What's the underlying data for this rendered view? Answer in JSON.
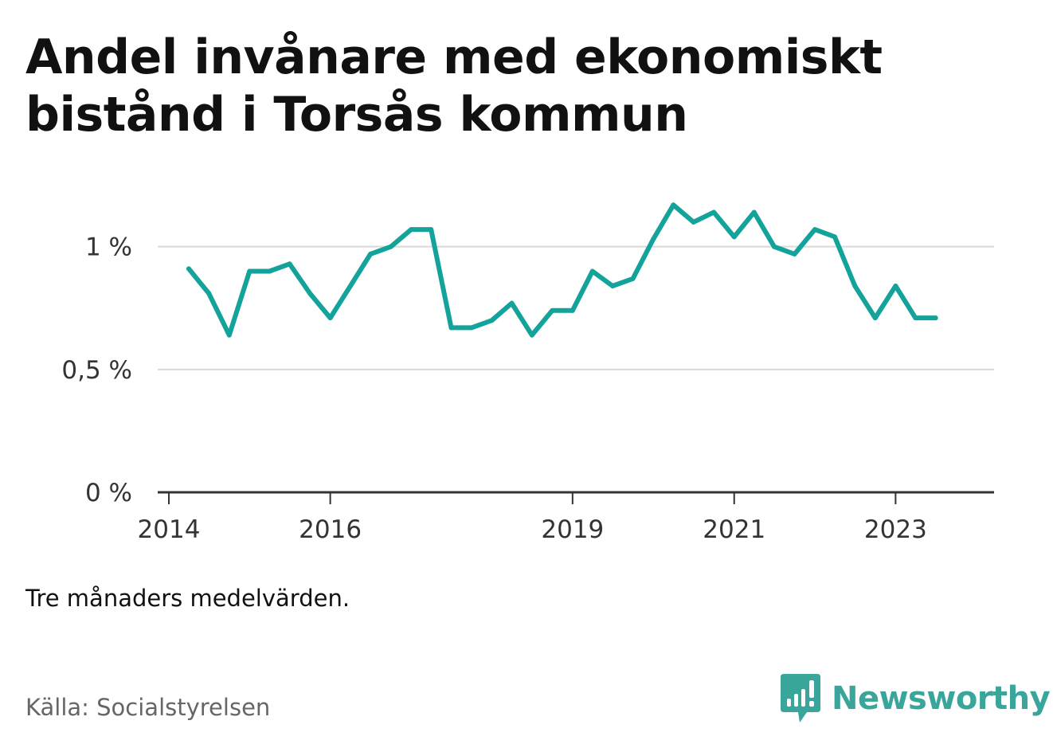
{
  "title": "Andel invånare med ekonomiskt bistånd i Torsås kommun",
  "subtitle": "Tre månaders medelvärden.",
  "source": "Källa: Socialstyrelsen",
  "brand": {
    "name": "Newsworthy",
    "logo_icon": "newsworthy-logo-icon",
    "color": "#3aa59a"
  },
  "chart_data": {
    "type": "line",
    "title": "Andel invånare med ekonomiskt bistånd i Torsås kommun",
    "xlabel": "",
    "ylabel": "",
    "x_axis": {
      "type": "date",
      "range": [
        "2014-01-01",
        "2024-01-31"
      ],
      "ticks": [
        {
          "label": "2014",
          "date": "2014-01-01"
        },
        {
          "label": "2016",
          "date": "2016-01-01"
        },
        {
          "label": "2019",
          "date": "2019-01-01"
        },
        {
          "label": "2021",
          "date": "2021-01-01"
        },
        {
          "label": "2023",
          "date": "2023-01-01"
        }
      ]
    },
    "y_axis": {
      "range": [
        0,
        1.2
      ],
      "ticks": [
        {
          "value": 0,
          "label": "0 %"
        },
        {
          "value": 0.5,
          "label": "0,5 %"
        },
        {
          "value": 1,
          "label": "1 %"
        }
      ]
    },
    "grid": true,
    "colors": {
      "line": "#13a39b",
      "grid": "#d9d9d9",
      "axis": "#333333"
    },
    "series": [
      {
        "points": [
          {
            "x": "2014-04-01",
            "y": 0.91
          },
          {
            "x": "2014-07-01",
            "y": 0.81
          },
          {
            "x": "2014-10-01",
            "y": 0.64
          },
          {
            "x": "2015-01-01",
            "y": 0.9
          },
          {
            "x": "2015-04-01",
            "y": 0.9
          },
          {
            "x": "2015-07-01",
            "y": 0.93
          },
          {
            "x": "2015-10-01",
            "y": 0.81
          },
          {
            "x": "2016-01-01",
            "y": 0.71
          },
          {
            "x": "2016-04-01",
            "y": 0.84
          },
          {
            "x": "2016-07-01",
            "y": 0.97
          },
          {
            "x": "2016-10-01",
            "y": 1.0
          },
          {
            "x": "2017-01-01",
            "y": 1.07
          },
          {
            "x": "2017-04-01",
            "y": 1.07
          },
          {
            "x": "2017-07-01",
            "y": 0.67
          },
          {
            "x": "2017-10-01",
            "y": 0.67
          },
          {
            "x": "2018-01-01",
            "y": 0.7
          },
          {
            "x": "2018-04-01",
            "y": 0.77
          },
          {
            "x": "2018-07-01",
            "y": 0.64
          },
          {
            "x": "2018-10-01",
            "y": 0.74
          },
          {
            "x": "2019-01-01",
            "y": 0.74
          },
          {
            "x": "2019-04-01",
            "y": 0.9
          },
          {
            "x": "2019-07-01",
            "y": 0.84
          },
          {
            "x": "2019-10-01",
            "y": 0.87
          },
          {
            "x": "2020-01-01",
            "y": 1.03
          },
          {
            "x": "2020-04-01",
            "y": 1.17
          },
          {
            "x": "2020-07-01",
            "y": 1.1
          },
          {
            "x": "2020-10-01",
            "y": 1.14
          },
          {
            "x": "2021-01-01",
            "y": 1.04
          },
          {
            "x": "2021-04-01",
            "y": 1.14
          },
          {
            "x": "2021-07-01",
            "y": 1.0
          },
          {
            "x": "2021-10-01",
            "y": 0.97
          },
          {
            "x": "2022-01-01",
            "y": 1.07
          },
          {
            "x": "2022-04-01",
            "y": 1.04
          },
          {
            "x": "2022-07-01",
            "y": 0.84
          },
          {
            "x": "2022-10-01",
            "y": 0.71
          },
          {
            "x": "2023-01-01",
            "y": 0.84
          },
          {
            "x": "2023-04-01",
            "y": 0.71
          },
          {
            "x": "2023-07-01",
            "y": 0.71
          }
        ]
      }
    ]
  }
}
